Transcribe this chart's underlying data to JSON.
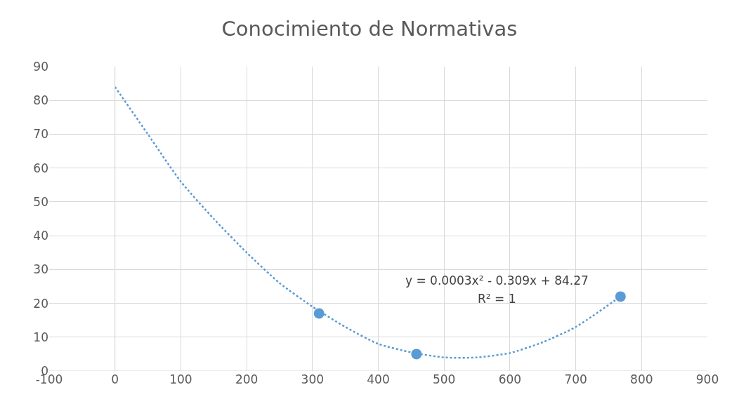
{
  "chart_data": {
    "type": "scatter",
    "title": "Conocimiento de Normativas",
    "xlim": [
      -100,
      900
    ],
    "xticks": [
      -100,
      0,
      100,
      200,
      300,
      400,
      500,
      600,
      700,
      800,
      900
    ],
    "ylim": [
      0,
      90
    ],
    "yticks": [
      0,
      10,
      20,
      30,
      40,
      50,
      60,
      70,
      80,
      90
    ],
    "grid": true,
    "marker": "circle",
    "series": [
      {
        "type": "line",
        "color": "#5b9bd5",
        "line_style": "dotted",
        "marker": "none",
        "x": [
          0,
          50,
          100,
          150,
          200,
          250,
          300,
          350,
          400,
          450,
          500,
          550,
          600,
          650,
          700,
          768
        ],
        "values": [
          84,
          70,
          56,
          45,
          35,
          26,
          19,
          13,
          8,
          5.5,
          4,
          4,
          5.3,
          8.5,
          13,
          22
        ]
      },
      {
        "color": "#5b9bd5",
        "x": [
          310,
          458,
          768
        ],
        "values": [
          17,
          5,
          22
        ]
      }
    ],
    "annotations": [
      "y = 0.0003x² - 0.309x + 84.27",
      "R² = 1"
    ]
  }
}
